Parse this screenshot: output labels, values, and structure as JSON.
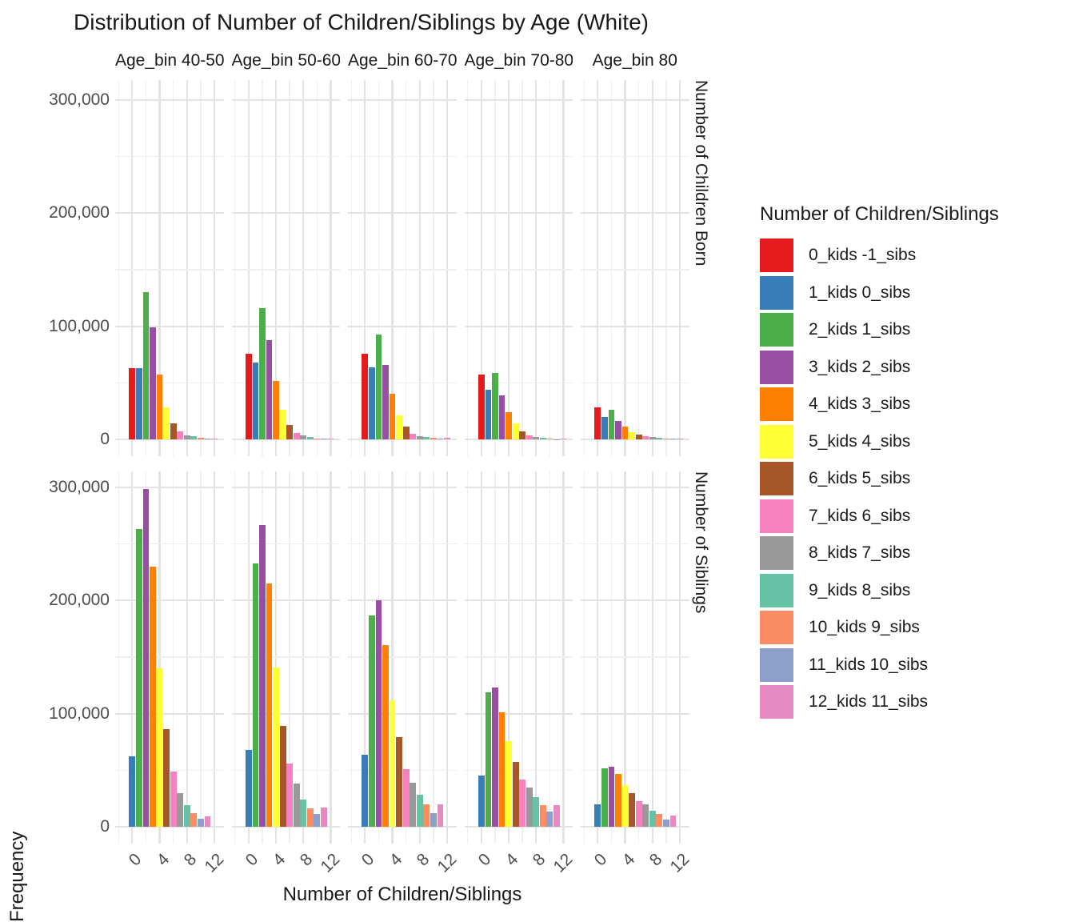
{
  "title": "Distribution of Number of Children/Siblings by Age (White)",
  "axes": {
    "x_title": "Number of Children/Siblings",
    "y_title": "Frequency",
    "x_ticks": [
      "0",
      "4",
      "8",
      "12"
    ],
    "y_ticks": [
      "0",
      "100,000",
      "200,000",
      "300,000"
    ]
  },
  "legend": {
    "title": "Number of Children/Siblings",
    "items": [
      {
        "label": "0_kids -1_sibs",
        "color": "#E41A1C"
      },
      {
        "label": "1_kids 0_sibs",
        "color": "#377EB8"
      },
      {
        "label": "2_kids 1_sibs",
        "color": "#4DAF4A"
      },
      {
        "label": "3_kids 2_sibs",
        "color": "#984EA3"
      },
      {
        "label": "4_kids 3_sibs",
        "color": "#FF7F00"
      },
      {
        "label": "5_kids 4_sibs",
        "color": "#FFFF33"
      },
      {
        "label": "6_kids 5_sibs",
        "color": "#A65628"
      },
      {
        "label": "7_kids 6_sibs",
        "color": "#F781BF"
      },
      {
        "label": "8_kids 7_sibs",
        "color": "#999999"
      },
      {
        "label": "9_kids 8_sibs",
        "color": "#66C2A5"
      },
      {
        "label": "10_kids 9_sibs",
        "color": "#FC8D62"
      },
      {
        "label": "11_kids 10_sibs",
        "color": "#8DA0CB"
      },
      {
        "label": "12_kids 11_sibs",
        "color": "#E78AC3"
      }
    ]
  },
  "chart_data": {
    "type": "bar",
    "title": "Distribution of Number of Children/Siblings by Age (White)",
    "xlabel": "Number of Children/Siblings",
    "ylabel": "Frequency",
    "ylim": [
      0,
      300000
    ],
    "y_major_breaks": [
      0,
      100000,
      200000,
      300000
    ],
    "y_minor_breaks": [
      50000,
      150000,
      250000
    ],
    "x_major_breaks": [
      0,
      4,
      8,
      12
    ],
    "x_minor_breaks": [
      -2,
      2,
      6,
      10
    ],
    "grid": true,
    "legend_position": "right",
    "facet_rows": [
      "Number of Children Born",
      "Number of Siblings"
    ],
    "facet_columns": [
      "Age_bin 40-50",
      "Age_bin 50-60",
      "Age_bin 60-70",
      "Age_bin 70-80",
      "Age_bin 80"
    ],
    "categories": [
      "0_kids -1_sibs",
      "1_kids 0_sibs",
      "2_kids 1_sibs",
      "3_kids 2_sibs",
      "4_kids 3_sibs",
      "5_kids 4_sibs",
      "6_kids 5_sibs",
      "7_kids 6_sibs",
      "8_kids 7_sibs",
      "9_kids 8_sibs",
      "10_kids 9_sibs",
      "11_kids 10_sibs",
      "12_kids 11_sibs"
    ],
    "colors": [
      "#E41A1C",
      "#377EB8",
      "#4DAF4A",
      "#984EA3",
      "#FF7F00",
      "#FFFF33",
      "#A65628",
      "#F781BF",
      "#999999",
      "#66C2A5",
      "#FC8D62",
      "#8DA0CB",
      "#E78AC3"
    ],
    "x_position_offset": {
      "children_born": 0,
      "siblings": -1
    },
    "facets": [
      {
        "label": "Age_bin 40-50",
        "children_born": [
          63000,
          63000,
          130000,
          99000,
          57000,
          28000,
          14000,
          7000,
          3500,
          2800,
          1200,
          700,
          1000
        ],
        "siblings": [
          0,
          62000,
          263000,
          299000,
          230000,
          140000,
          86000,
          49000,
          29500,
          19000,
          12000,
          7000,
          9500
        ]
      },
      {
        "label": "Age_bin 50-60",
        "children_born": [
          76000,
          68000,
          116000,
          88000,
          52000,
          26000,
          13000,
          6000,
          3500,
          2000,
          1000,
          500,
          1000
        ],
        "siblings": [
          0,
          68000,
          233000,
          267000,
          215000,
          141000,
          89000,
          56000,
          38000,
          24000,
          16000,
          11000,
          17000
        ]
      },
      {
        "label": "Age_bin 60-70",
        "children_born": [
          76000,
          64000,
          93000,
          66000,
          40000,
          21000,
          11500,
          5000,
          3000,
          1800,
          1500,
          800,
          1500
        ],
        "siblings": [
          0,
          64000,
          187000,
          200000,
          161000,
          112000,
          79000,
          51000,
          39000,
          28000,
          20000,
          12000,
          20000
        ]
      },
      {
        "label": "Age_bin 70-80",
        "children_born": [
          57000,
          44000,
          59000,
          39000,
          24000,
          14000,
          7000,
          3800,
          2100,
          1300,
          700,
          300,
          600
        ],
        "siblings": [
          0,
          45000,
          119000,
          123000,
          101000,
          76000,
          57000,
          42000,
          35000,
          26000,
          19000,
          13500,
          19000
        ]
      },
      {
        "label": "Age_bin 80",
        "children_born": [
          28000,
          20000,
          26000,
          16500,
          11000,
          6400,
          4000,
          3000,
          1900,
          1200,
          800,
          400,
          600
        ],
        "siblings": [
          0,
          20000,
          52000,
          53000,
          47000,
          36500,
          29500,
          22500,
          19500,
          14000,
          11000,
          6500,
          10000
        ]
      }
    ]
  }
}
